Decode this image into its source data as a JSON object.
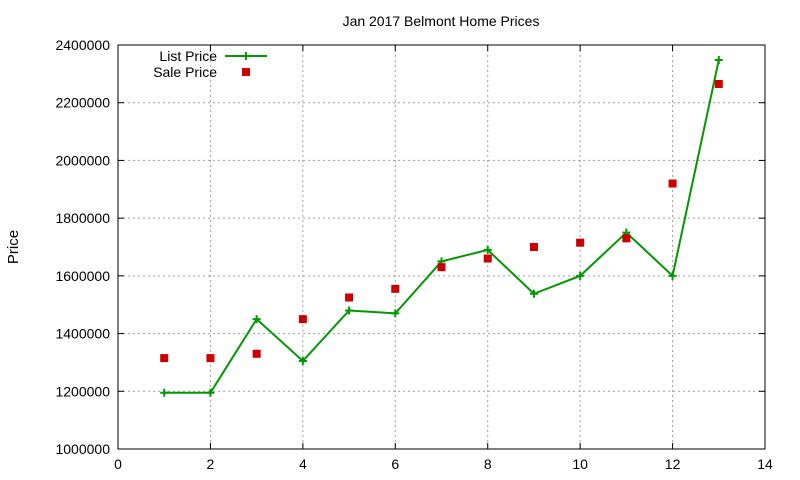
{
  "chart_data": {
    "type": "line",
    "title": "Jan 2017 Belmont Home Prices",
    "xlabel": "",
    "ylabel": "Price",
    "xlim": [
      0,
      14
    ],
    "ylim": [
      1000000,
      2400000
    ],
    "x_ticks": [
      0,
      2,
      4,
      6,
      8,
      10,
      12,
      14
    ],
    "y_ticks": [
      1000000,
      1200000,
      1400000,
      1600000,
      1800000,
      2000000,
      2200000,
      2400000
    ],
    "grid": true,
    "legend_position": "top-left",
    "series": [
      {
        "name": "List Price",
        "style": "line-with-plus-markers",
        "color": "#009900",
        "x": [
          1,
          2,
          3,
          4,
          5,
          6,
          7,
          8,
          9,
          10,
          11,
          12,
          13
        ],
        "values": [
          1195000,
          1195000,
          1450000,
          1305000,
          1480000,
          1470000,
          1650000,
          1690000,
          1538000,
          1600000,
          1750000,
          1600000,
          2348000
        ]
      },
      {
        "name": "Sale Price",
        "style": "square-markers",
        "color": "#cc0000",
        "x": [
          1,
          2,
          3,
          4,
          5,
          6,
          7,
          8,
          9,
          10,
          11,
          12,
          13
        ],
        "values": [
          1315000,
          1315000,
          1330000,
          1450000,
          1525000,
          1555000,
          1630000,
          1660000,
          1700000,
          1715000,
          1730000,
          1920000,
          2265000
        ]
      }
    ]
  }
}
